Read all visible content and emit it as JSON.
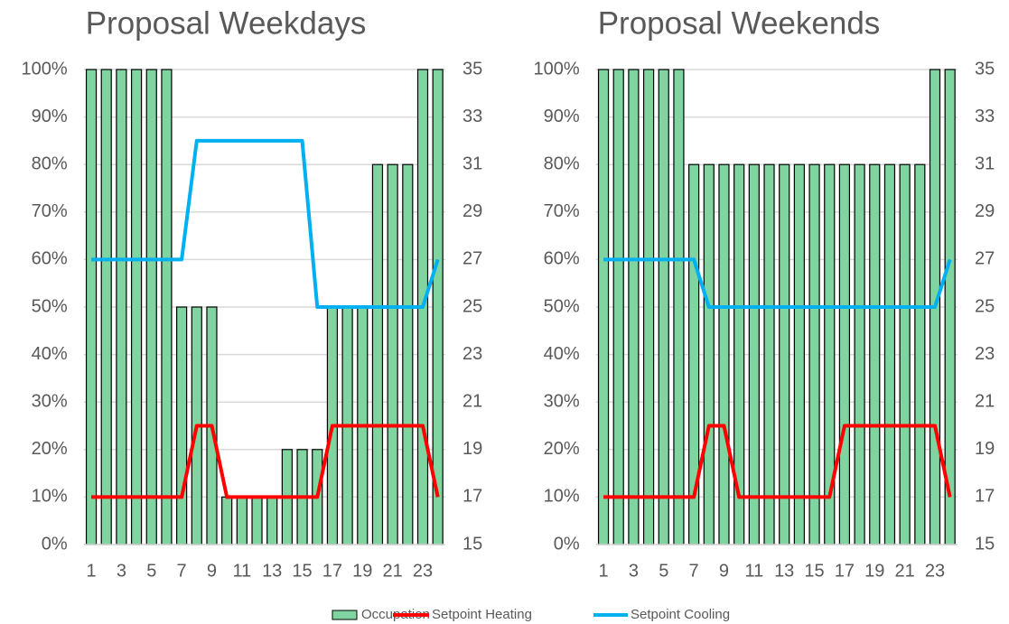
{
  "chart_data": [
    {
      "type": "combo",
      "title": "Proposal Weekdays",
      "categories": [
        "1",
        null,
        "3",
        null,
        "5",
        null,
        "7",
        null,
        "9",
        null,
        "11",
        null,
        "13",
        null,
        "15",
        null,
        "17",
        null,
        "19",
        null,
        "21",
        null,
        "23",
        null
      ],
      "series": [
        {
          "name": "Occupation",
          "type": "bar",
          "color": "#7fd4a0",
          "values": [
            100,
            100,
            100,
            100,
            100,
            100,
            50,
            50,
            50,
            10,
            10,
            10,
            10,
            20,
            20,
            20,
            50,
            50,
            50,
            80,
            80,
            80,
            100,
            100
          ]
        },
        {
          "name": "Setpoint Heating",
          "type": "line",
          "axis": "y2",
          "color": "#ff0000",
          "values": [
            17,
            17,
            17,
            17,
            17,
            17,
            17,
            20,
            20,
            17,
            17,
            17,
            17,
            17,
            17,
            17,
            20,
            20,
            20,
            20,
            20,
            20,
            20,
            17
          ]
        },
        {
          "name": "Setpoint Cooling",
          "type": "line",
          "axis": "y2",
          "color": "#00b0f0",
          "values": [
            27,
            27,
            27,
            27,
            27,
            27,
            27,
            32,
            32,
            32,
            32,
            32,
            32,
            32,
            32,
            25,
            25,
            25,
            25,
            25,
            25,
            25,
            25,
            27
          ]
        }
      ],
      "ylim": [
        0,
        100
      ],
      "yticks": [
        {
          "value": 0,
          "label": "0%"
        },
        {
          "value": 10,
          "label": "10%"
        },
        {
          "value": 20,
          "label": "20%"
        },
        {
          "value": 30,
          "label": "30%"
        },
        {
          "value": 40,
          "label": "40%"
        },
        {
          "value": 50,
          "label": "50%"
        },
        {
          "value": 60,
          "label": "60%"
        },
        {
          "value": 70,
          "label": "70%"
        },
        {
          "value": 80,
          "label": "80%"
        },
        {
          "value": 90,
          "label": "90%"
        },
        {
          "value": 100,
          "label": "100%"
        }
      ],
      "y2lim": [
        15,
        35
      ],
      "y2ticks": [
        15,
        17,
        19,
        21,
        23,
        25,
        27,
        29,
        31,
        33,
        35
      ],
      "grid": true
    },
    {
      "type": "combo",
      "title": "Proposal Weekends",
      "categories": [
        "1",
        null,
        "3",
        null,
        "5",
        null,
        "7",
        null,
        "9",
        null,
        "11",
        null,
        "13",
        null,
        "15",
        null,
        "17",
        null,
        "19",
        null,
        "21",
        null,
        "23",
        null
      ],
      "series": [
        {
          "name": "Occupation",
          "type": "bar",
          "color": "#7fd4a0",
          "values": [
            100,
            100,
            100,
            100,
            100,
            100,
            80,
            80,
            80,
            80,
            80,
            80,
            80,
            80,
            80,
            80,
            80,
            80,
            80,
            80,
            80,
            80,
            100,
            100
          ]
        },
        {
          "name": "Setpoint Heating",
          "type": "line",
          "axis": "y2",
          "color": "#ff0000",
          "values": [
            17,
            17,
            17,
            17,
            17,
            17,
            17,
            20,
            20,
            17,
            17,
            17,
            17,
            17,
            17,
            17,
            20,
            20,
            20,
            20,
            20,
            20,
            20,
            17
          ]
        },
        {
          "name": "Setpoint Cooling",
          "type": "line",
          "axis": "y2",
          "color": "#00b0f0",
          "values": [
            27,
            27,
            27,
            27,
            27,
            27,
            27,
            25,
            25,
            25,
            25,
            25,
            25,
            25,
            25,
            25,
            25,
            25,
            25,
            25,
            25,
            25,
            25,
            27
          ]
        }
      ],
      "ylim": [
        0,
        100
      ],
      "yticks": [
        {
          "value": 0,
          "label": "0%"
        },
        {
          "value": 10,
          "label": "10%"
        },
        {
          "value": 20,
          "label": "20%"
        },
        {
          "value": 30,
          "label": "30%"
        },
        {
          "value": 40,
          "label": "40%"
        },
        {
          "value": 50,
          "label": "50%"
        },
        {
          "value": 60,
          "label": "60%"
        },
        {
          "value": 70,
          "label": "70%"
        },
        {
          "value": 80,
          "label": "80%"
        },
        {
          "value": 90,
          "label": "90%"
        },
        {
          "value": 100,
          "label": "100%"
        }
      ],
      "y2lim": [
        15,
        35
      ],
      "y2ticks": [
        15,
        17,
        19,
        21,
        23,
        25,
        27,
        29,
        31,
        33,
        35
      ],
      "grid": true
    }
  ]
}
